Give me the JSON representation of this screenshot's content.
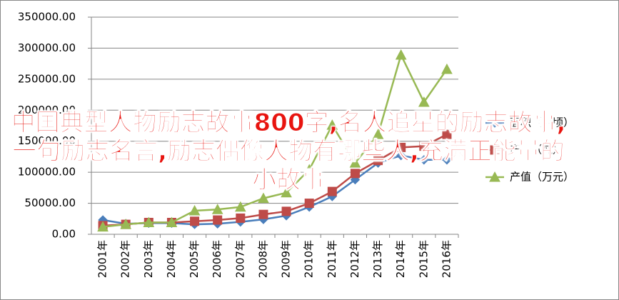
{
  "chart_data": {
    "type": "line",
    "categories": [
      "2001年",
      "2002年",
      "2003年",
      "2004年",
      "2005年",
      "2006年",
      "2007年",
      "2008年",
      "2009年",
      "2010年",
      "2011年",
      "2012年",
      "2013年",
      "2014年",
      "2015年",
      "2016年"
    ],
    "series": [
      {
        "name": "面积（公顷）",
        "color": "#4a7ebb",
        "marker": "diamond",
        "values": [
          23000,
          17000,
          18000,
          18000,
          16000,
          17000,
          20000,
          24000,
          30000,
          44000,
          61000,
          88000,
          115000,
          127000,
          120000,
          120000
        ]
      },
      {
        "name": "产量（吨）",
        "color": "#be4b48",
        "marker": "square",
        "values": [
          14000,
          16000,
          19000,
          19000,
          21000,
          23000,
          26000,
          32000,
          37000,
          50000,
          69000,
          98000,
          119000,
          140000,
          142000,
          161000
        ]
      },
      {
        "name": "产值（万元）",
        "color": "#98b954",
        "marker": "triangle",
        "values": [
          12000,
          16000,
          19000,
          19000,
          38000,
          40000,
          44000,
          58000,
          67000,
          104000,
          176000,
          115000,
          161000,
          289000,
          213000,
          266000
        ]
      }
    ],
    "ylim": [
      0,
      350000
    ],
    "yticks": [
      {
        "value": 0,
        "label": "0.00"
      },
      {
        "value": 50000,
        "label": "50000.00"
      },
      {
        "value": 100000,
        "label": "100000.00"
      },
      {
        "value": 150000,
        "label": "150000.00"
      },
      {
        "value": 200000,
        "label": "200000.00"
      },
      {
        "value": 250000,
        "label": "250000.00"
      },
      {
        "value": 300000,
        "label": "300000.00"
      },
      {
        "value": 350000,
        "label": "350000.00"
      }
    ],
    "grid": true,
    "legend": "right"
  },
  "overlay_text": "中国典型人物励志故事800字,名人追星的励志故事,一句励志名言,励志偶像人物有哪些人,充满正能量的小故事"
}
